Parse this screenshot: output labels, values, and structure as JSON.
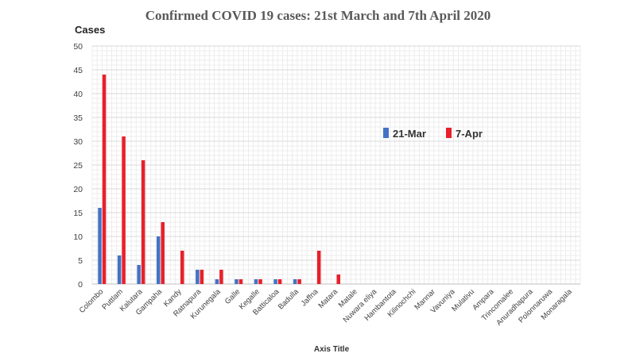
{
  "chart_data": {
    "type": "bar",
    "title": "Confirmed COVID 19 cases: 21st March and 7th April 2020",
    "xlabel": "Axis Title",
    "ylabel": "Cases",
    "ylim": [
      0,
      50
    ],
    "yticks": [
      0,
      5,
      10,
      15,
      20,
      25,
      30,
      35,
      40,
      45,
      50
    ],
    "grid": true,
    "legend_position": "center-right",
    "categories": [
      "Colombo",
      "Puttlam",
      "Kalutara",
      "Gampaha",
      "Kandy",
      "Ratnapura",
      "Kurunegala",
      "Galle",
      "Kegalle",
      "Batticaloa",
      "Badulla",
      "Jaffna",
      "Matara",
      "Matale",
      "Nuwara eliya",
      "Hambantota",
      "Kilinochchi",
      "Mannar",
      "Vavuniya",
      "Mulativu",
      "Ampara",
      "Trincomalee",
      "Anuradhapura",
      "Polonnaruwa",
      "Monaragala"
    ],
    "series": [
      {
        "name": "21-Mar",
        "color": "#4472c4",
        "values": [
          16,
          6,
          4,
          10,
          0,
          3,
          1,
          1,
          1,
          1,
          1,
          0,
          0,
          0,
          0,
          0,
          0,
          0,
          0,
          0,
          0,
          0,
          0,
          0,
          0
        ]
      },
      {
        "name": "7-Apr",
        "color": "#e8202a",
        "values": [
          44,
          31,
          26,
          13,
          7,
          3,
          3,
          1,
          1,
          1,
          1,
          7,
          2,
          0,
          0,
          0,
          0,
          0,
          0,
          0,
          0,
          0,
          0,
          0,
          0
        ]
      }
    ]
  }
}
